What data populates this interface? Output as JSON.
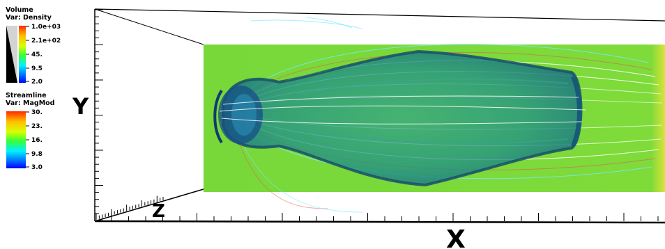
{
  "volume_legend": {
    "title": "Volume",
    "var": "Var: Density",
    "ticks": [
      "1.0e+03",
      "2.1e+02",
      "45.",
      "9.5",
      "2.0"
    ]
  },
  "streamline_legend": {
    "title": "Streamline",
    "var": "Var: MagMod",
    "ticks": [
      "30.",
      "23.",
      "16.",
      "9.8",
      "3.0"
    ]
  },
  "axes": {
    "x_label": "X",
    "y_label": "Y",
    "z_label": "Z"
  },
  "colors": {
    "slice_green": "#7ddc3a",
    "body_teal": "#1c8a86",
    "body_edge": "#1a4f6a",
    "streamline_white": "#ffffff",
    "streamline_red": "#e25b4d",
    "streamline_cyan": "#7ce8ff"
  }
}
